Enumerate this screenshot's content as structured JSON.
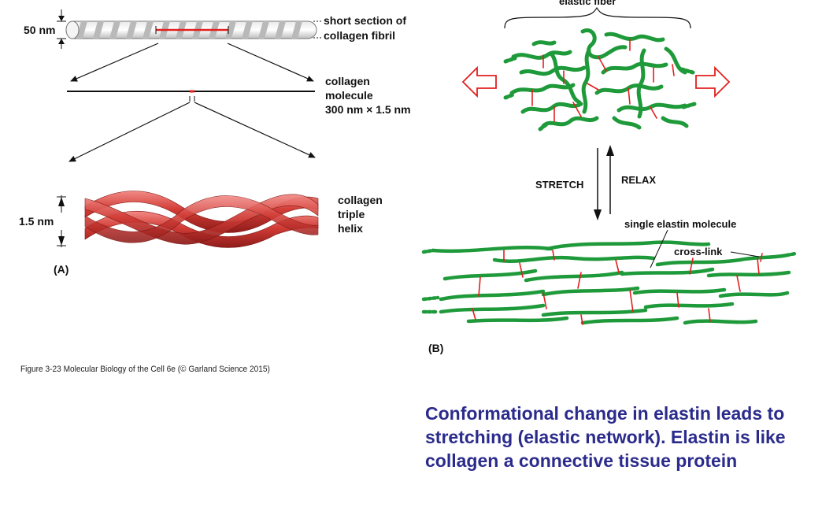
{
  "panel_a": {
    "label": "(A)",
    "fibril": {
      "diameter_label": "50 nm",
      "label_line1": "short section of",
      "label_line2": "collagen fibril"
    },
    "molecule": {
      "label_line1": "collagen",
      "label_line2": "molecule",
      "label_line3": "300 nm × 1.5 nm"
    },
    "helix": {
      "diameter_label": "1.5 nm",
      "label_line1": "collagen",
      "label_line2": "triple",
      "label_line3": "helix"
    }
  },
  "panel_b": {
    "label": "(B)",
    "top_label": "elastic fiber",
    "stretch_label": "STRETCH",
    "relax_label": "RELAX",
    "molecule_label": "single elastin molecule",
    "crosslink_label": "cross-link"
  },
  "figure_caption": "Figure 3-23  Molecular Biology of the Cell 6e (© Garland Science 2015)",
  "main_caption": "Conformational change in elastin leads to stretching (elastic network). Elastin is like collagen a connective tissue protein",
  "colors": {
    "elastin_green": "#1f9a3a",
    "crosslink_red": "#e0201f",
    "arrow_red": "#e0201f",
    "collagen_red": "#c8302c",
    "caption_blue": "#2b2b8c"
  }
}
